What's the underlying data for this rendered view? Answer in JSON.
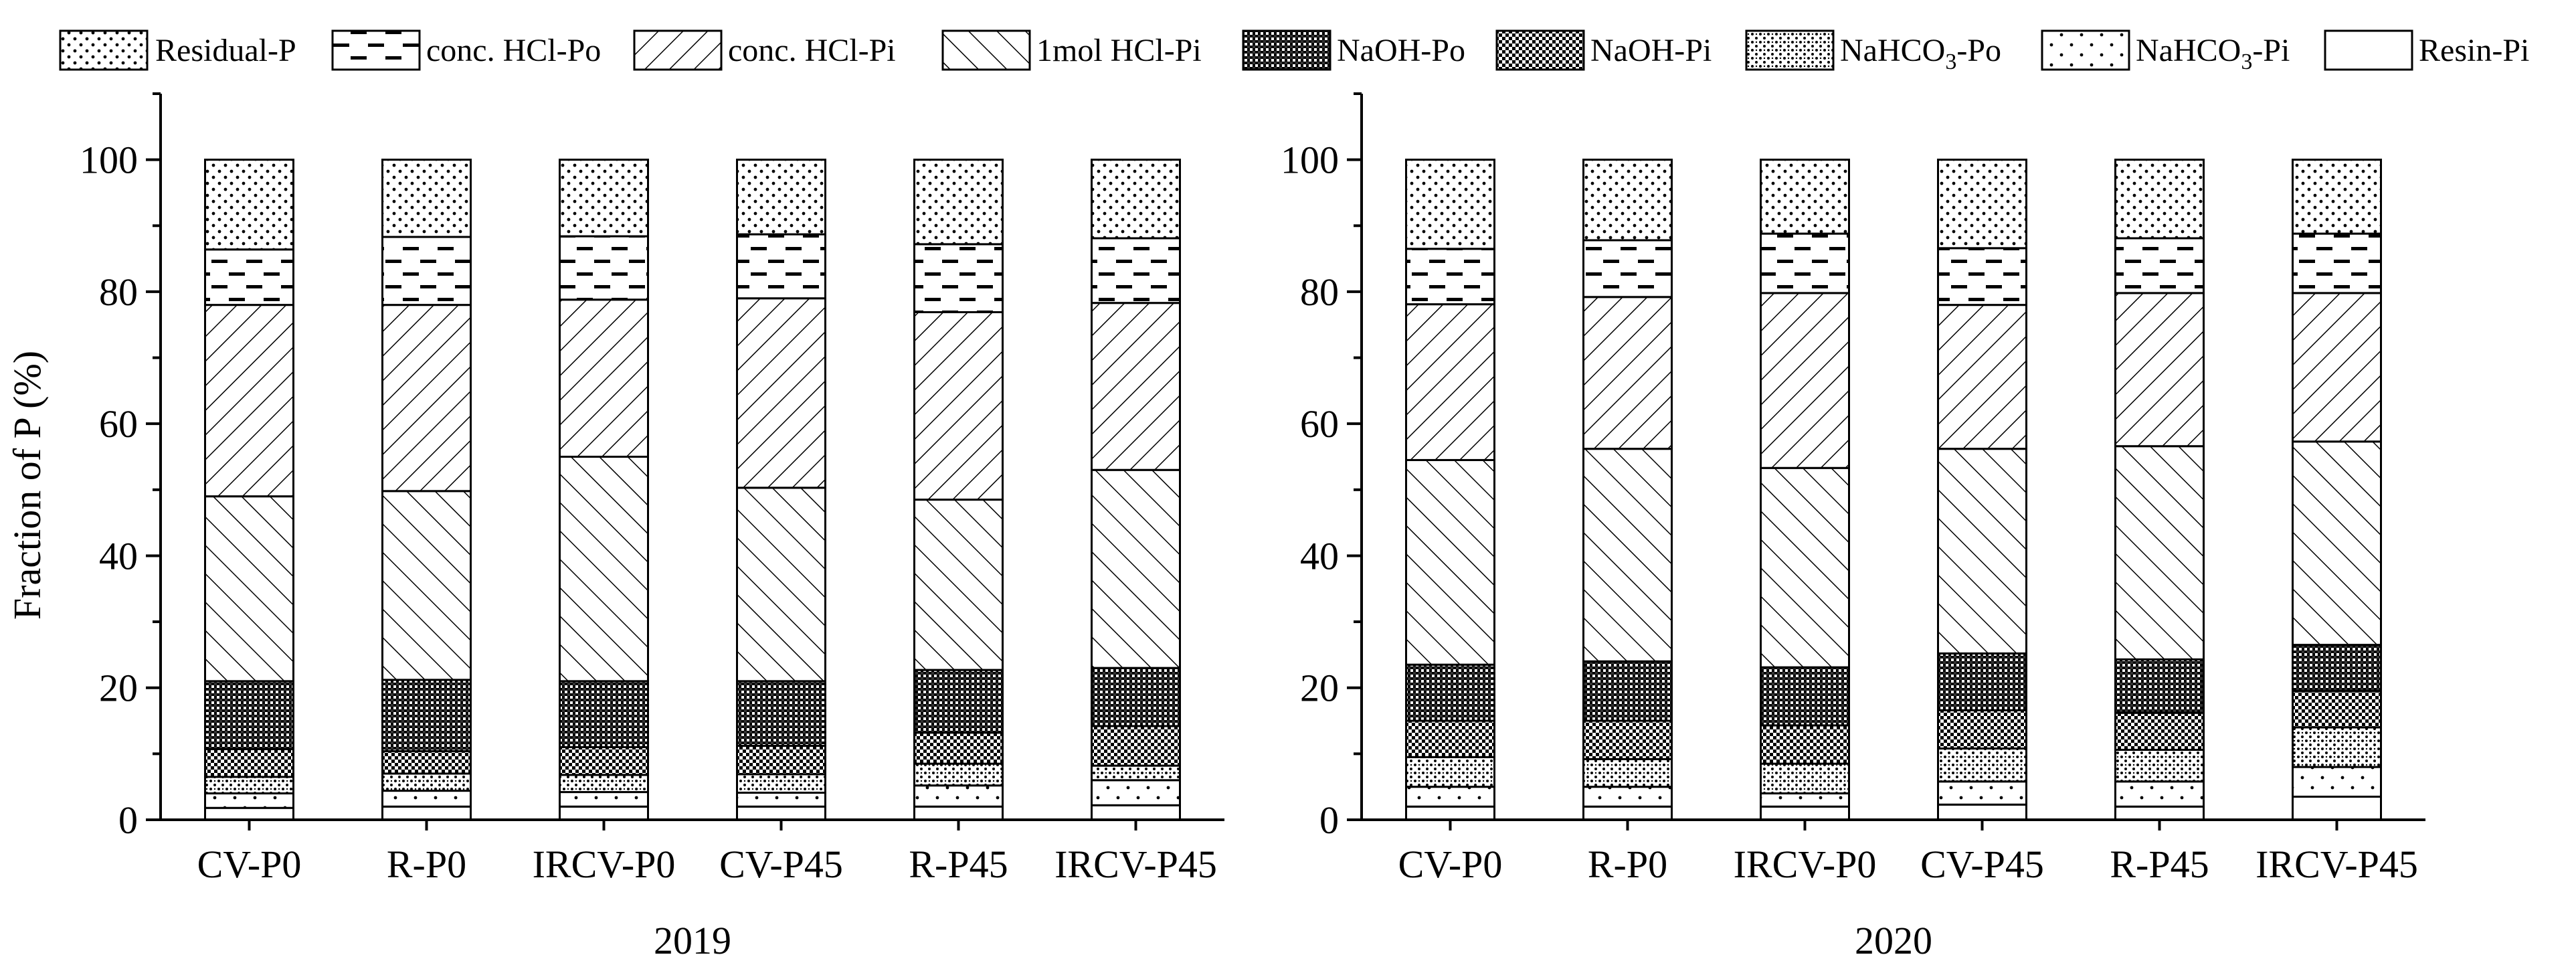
{
  "legend": [
    {
      "key": "residual_p",
      "label": "Residual-P",
      "pattern": "dots-dense"
    },
    {
      "key": "conc_hcl_po",
      "label": "conc. HCl-Po",
      "pattern": "dashes"
    },
    {
      "key": "conc_hcl_pi",
      "label": "conc. HCl-Pi",
      "pattern": "back-diagonal"
    },
    {
      "key": "hcl1_pi",
      "label": "1mol HCl-Pi",
      "pattern": "forward-diagonal"
    },
    {
      "key": "naoh_po",
      "label": "NaOH-Po",
      "pattern": "crosshatch-dense"
    },
    {
      "key": "naoh_pi",
      "label": "NaOH-Pi",
      "pattern": "crosshatch-medium"
    },
    {
      "key": "nahco3_po",
      "label": "NaHCO3-Po",
      "label_base": "NaHCO",
      "label_sub": "3",
      "label_tail": "-Po",
      "pattern": "dots-medium"
    },
    {
      "key": "nahco3_pi",
      "label": "NaHCO3-Pi",
      "label_base": "NaHCO",
      "label_sub": "3",
      "label_tail": "-Pi",
      "pattern": "dots-sparse"
    },
    {
      "key": "resin_pi",
      "label": "Resin-Pi",
      "pattern": "blank"
    }
  ],
  "chart_data": [
    {
      "type": "bar",
      "stacked": true,
      "title": "",
      "xlabel": "2019",
      "ylabel": "Fraction of P (%)",
      "ylim": [
        0,
        110
      ],
      "yticks": [
        0,
        20,
        40,
        60,
        80,
        100
      ],
      "categories": [
        "CV-P0",
        "R-P0",
        "IRCV-P0",
        "CV-P45",
        "R-P45",
        "IRCV-P45"
      ],
      "series": [
        {
          "name": "Resin-Pi",
          "values": [
            1.8,
            2.0,
            2.0,
            2.0,
            2.0,
            2.2
          ]
        },
        {
          "name": "NaHCO3-Pi",
          "values": [
            2.2,
            2.4,
            2.2,
            2.1,
            3.2,
            3.8
          ]
        },
        {
          "name": "NaHCO3-Po",
          "values": [
            2.5,
            2.6,
            2.6,
            2.8,
            3.3,
            2.2
          ]
        },
        {
          "name": "NaOH-Pi",
          "values": [
            4.2,
            3.4,
            4.2,
            4.3,
            4.7,
            6.0
          ]
        },
        {
          "name": "NaOH-Po",
          "values": [
            10.3,
            10.8,
            10.0,
            9.8,
            9.5,
            8.8
          ]
        },
        {
          "name": "1mol HCl-Pi",
          "values": [
            28.0,
            28.6,
            34.0,
            29.3,
            25.8,
            30.0
          ]
        },
        {
          "name": "conc. HCl-Pi",
          "values": [
            29.0,
            28.2,
            23.8,
            28.7,
            28.4,
            25.3
          ]
        },
        {
          "name": "conc. HCl-Po",
          "values": [
            8.4,
            10.3,
            9.6,
            9.7,
            10.3,
            9.8
          ]
        },
        {
          "name": "Residual-P",
          "values": [
            13.6,
            11.7,
            11.6,
            11.3,
            12.8,
            11.9
          ]
        }
      ]
    },
    {
      "type": "bar",
      "stacked": true,
      "title": "",
      "xlabel": "2020",
      "ylabel": "",
      "ylim": [
        0,
        110
      ],
      "yticks": [
        0,
        20,
        40,
        60,
        80,
        100
      ],
      "categories": [
        "CV-P0",
        "R-P0",
        "IRCV-P0",
        "CV-P45",
        "R-P45",
        "IRCV-P45"
      ],
      "series": [
        {
          "name": "Resin-Pi",
          "values": [
            2.0,
            2.0,
            2.0,
            2.3,
            2.0,
            3.5
          ]
        },
        {
          "name": "NaHCO3-Pi",
          "values": [
            3.0,
            3.0,
            2.0,
            3.5,
            3.8,
            4.5
          ]
        },
        {
          "name": "NaHCO3-Po",
          "values": [
            4.5,
            4.2,
            4.5,
            5.0,
            4.8,
            6.0
          ]
        },
        {
          "name": "NaOH-Pi",
          "values": [
            5.5,
            5.8,
            5.8,
            5.8,
            5.6,
            5.5
          ]
        },
        {
          "name": "NaOH-Po",
          "values": [
            8.5,
            9.0,
            8.8,
            8.6,
            8.1,
            7.0
          ]
        },
        {
          "name": "1mol HCl-Pi",
          "values": [
            31.0,
            32.2,
            30.2,
            31.0,
            32.3,
            30.8
          ]
        },
        {
          "name": "conc. HCl-Pi",
          "values": [
            23.6,
            23.0,
            26.5,
            21.8,
            23.2,
            22.5
          ]
        },
        {
          "name": "conc. HCl-Po",
          "values": [
            8.4,
            8.6,
            9.0,
            8.6,
            8.3,
            9.0
          ]
        },
        {
          "name": "Residual-P",
          "values": [
            13.5,
            12.2,
            11.2,
            13.4,
            11.9,
            11.2
          ]
        }
      ]
    }
  ]
}
